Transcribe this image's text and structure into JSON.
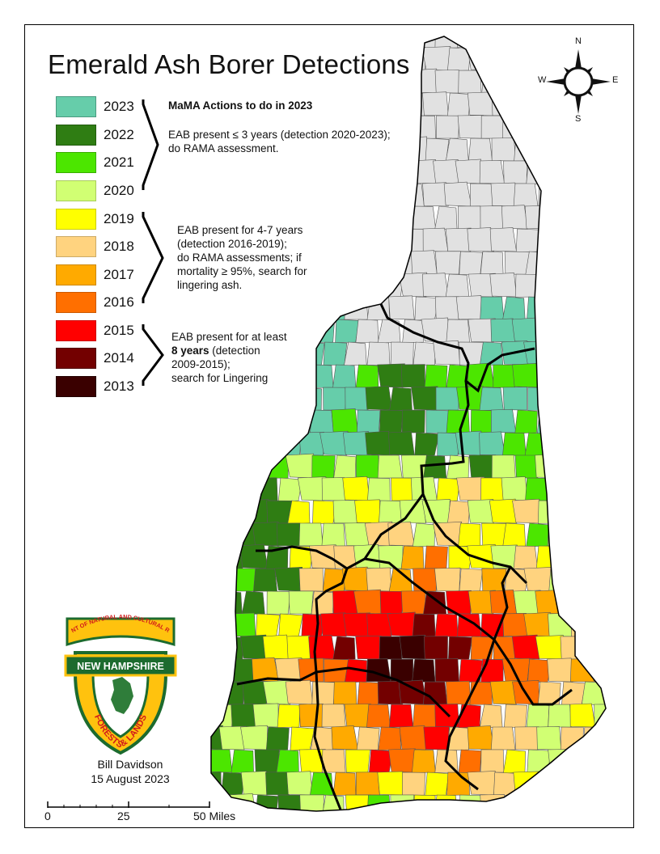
{
  "title": "Emerald Ash Borer Detections",
  "legend": {
    "items": [
      {
        "label": "2023",
        "color": "#66cdaa"
      },
      {
        "label": "2022",
        "color": "#2f7d13"
      },
      {
        "label": "2021",
        "color": "#4ce600"
      },
      {
        "label": "2020",
        "color": "#d1ff73"
      },
      {
        "label": "2019",
        "color": "#ffff00"
      },
      {
        "label": "2018",
        "color": "#ffd37f"
      },
      {
        "label": "2017",
        "color": "#ffaa00"
      },
      {
        "label": "2016",
        "color": "#ff6f00"
      },
      {
        "label": "2015",
        "color": "#ff0000"
      },
      {
        "label": "2014",
        "color": "#730000"
      },
      {
        "label": "2013",
        "color": "#3a0000"
      }
    ],
    "no_detection_color": "#e1e1e1"
  },
  "actions": {
    "heading": "MaMA Actions to do in 2023",
    "group1": [
      "EAB present ≤ 3 years (detection 2020-2023);",
      "do RAMA assessment."
    ],
    "group2": [
      "EAB present for 4-7 years",
      "(detection 2016-2019);",
      "do RAMA assessments; if",
      "mortality ≥ 95%, search for",
      "lingering ash."
    ],
    "group3_line1": "EAB present for at least",
    "group3_bold": "8 years",
    "group3_line2_rest": " (detection",
    "group3_rest": [
      "2009-2015);",
      "search for Lingering"
    ]
  },
  "compass": {
    "n": "N",
    "s": "S",
    "e": "E",
    "w": "W"
  },
  "logo": {
    "top_text": "DEPARTMENT OF NATURAL AND CULTURAL RESOURCES",
    "banner": "NEW HAMPSHIRE",
    "bottom_text": "FORESTS & LANDS"
  },
  "credit": {
    "author": "Bill Davidson",
    "date": "15 August 2023"
  },
  "scale": {
    "labels": [
      "0",
      "25",
      "50 Miles"
    ]
  }
}
